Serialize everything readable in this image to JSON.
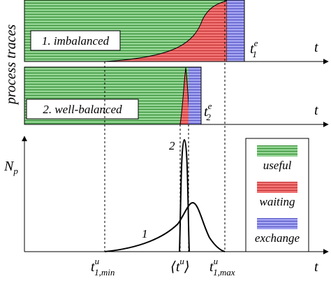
{
  "y_axis_label": "process traces",
  "panels": [
    {
      "label": "1. imbalanced",
      "axis": "t",
      "end": {
        "base": "t",
        "sub": "1",
        "sup": "e"
      }
    },
    {
      "label": "2. well-balanced",
      "axis": "t",
      "end": {
        "base": "t",
        "sub": "2",
        "sup": "e"
      }
    }
  ],
  "plot": {
    "y_label": {
      "base": "N",
      "sub": "p"
    },
    "x_label": "t",
    "curve_labels": [
      "1",
      "2"
    ],
    "x_marks": [
      {
        "base": "t",
        "sup": "u",
        "sub": "1,min"
      },
      {
        "open": "⟨",
        "base": "t",
        "sup": "u",
        "close": "⟩"
      },
      {
        "base": "t",
        "sup": "u",
        "sub": "1,max"
      }
    ]
  },
  "legend": [
    "useful",
    "waiting",
    "exchange"
  ]
}
